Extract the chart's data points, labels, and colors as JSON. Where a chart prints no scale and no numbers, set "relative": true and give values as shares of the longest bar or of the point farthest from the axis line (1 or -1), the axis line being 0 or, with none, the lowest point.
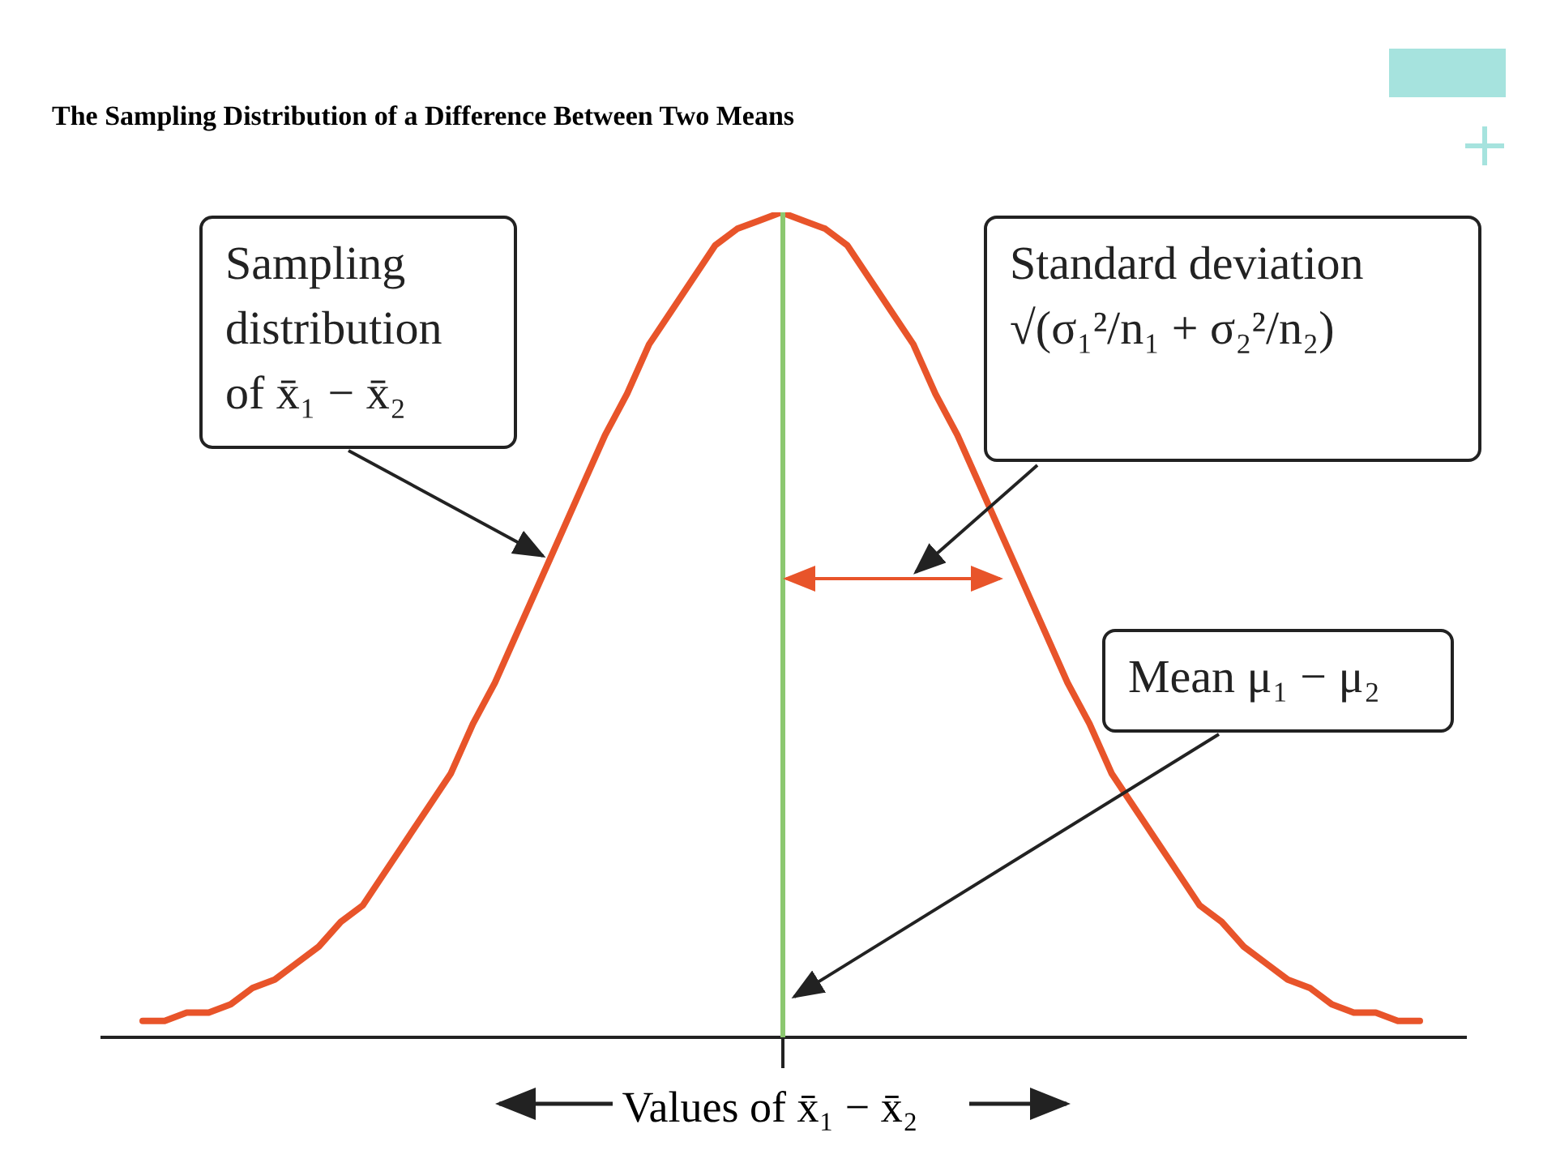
{
  "chart_data": {
    "type": "line",
    "title": "The Sampling Distribution of a Difference Between Two Means",
    "xlabel": "Values of x̄₁ − x̄₂",
    "relative": true,
    "categories": [
      null,
      null,
      null,
      null,
      null,
      null,
      null,
      null,
      null,
      null,
      null,
      null,
      null,
      null,
      null,
      null,
      null,
      null,
      null,
      null,
      null,
      null,
      null,
      null,
      null,
      null,
      null,
      null,
      null,
      null,
      null,
      null,
      null,
      null,
      null,
      null,
      null,
      null,
      null,
      null,
      null,
      null,
      null,
      null,
      null,
      null,
      null,
      null,
      null,
      null,
      null,
      null,
      null,
      null,
      null,
      null,
      null,
      null,
      null
    ],
    "series": [
      {
        "color": "#e8542a",
        "values": [
          0.02,
          0.02,
          0.03,
          0.03,
          0.04,
          0.06,
          0.07,
          0.09,
          0.11,
          0.14,
          0.16,
          0.2,
          0.24,
          0.28,
          0.32,
          0.38,
          0.43,
          0.49,
          0.55,
          0.61,
          0.67,
          0.73,
          0.78,
          0.84,
          0.88,
          0.92,
          0.96,
          0.98,
          0.99,
          1,
          0.99,
          0.98,
          0.96,
          0.92,
          0.88,
          0.84,
          0.78,
          0.73,
          0.67,
          0.61,
          0.55,
          0.49,
          0.43,
          0.38,
          0.32,
          0.28,
          0.24,
          0.2,
          0.16,
          0.14,
          0.11,
          0.09,
          0.07,
          0.06,
          0.04,
          0.03,
          0.03,
          0.02,
          0.02
        ]
      }
    ],
    "marker": "none",
    "line_style": "solid",
    "annotations": [
      "Sampling distribution of x̄₁ − x̄₂",
      "Standard deviation √(σ₁²/n₁ + σ₂²/n₂)",
      "Mean μ₁ − μ₂"
    ]
  }
}
